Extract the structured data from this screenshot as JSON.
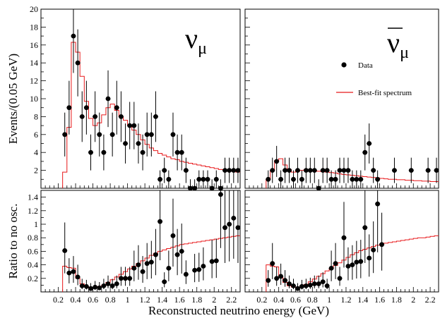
{
  "figure": {
    "xlabel": "Reconstructed neutrino energy (GeV)",
    "legend": {
      "data_label": "Data",
      "fit_label": "Best-fit spectrum"
    },
    "colors": {
      "fit": "#e8191b",
      "data": "#000000",
      "axes": "#000000"
    }
  },
  "chart_data": [
    {
      "panel": "top-left",
      "type": "scatter",
      "title": "νμ",
      "particle_symbol": "ν",
      "particle_subscript": "μ",
      "antineutrino": false,
      "xlabel": "",
      "ylabel": "Events/(0.05 GeV)",
      "xlim": [
        0,
        2.3
      ],
      "ylim": [
        0,
        20
      ],
      "yticks": [
        2,
        4,
        6,
        8,
        10,
        12,
        14,
        16,
        18,
        20
      ],
      "ytick_labels": [
        "2",
        "4",
        "6",
        "8",
        "10",
        "12",
        "14",
        "16",
        "18",
        "20"
      ],
      "data": {
        "x": [
          0.275,
          0.325,
          0.375,
          0.425,
          0.475,
          0.525,
          0.575,
          0.625,
          0.675,
          0.725,
          0.775,
          0.825,
          0.875,
          0.925,
          0.975,
          1.025,
          1.075,
          1.125,
          1.175,
          1.225,
          1.275,
          1.325,
          1.375,
          1.425,
          1.475,
          1.525,
          1.575,
          1.625,
          1.675,
          1.725,
          1.775,
          1.825,
          1.875,
          1.925,
          1.975,
          2.025,
          2.075,
          2.125,
          2.175,
          2.225,
          2.275
        ],
        "y": [
          6,
          9,
          17,
          14,
          8,
          9,
          4,
          8,
          6,
          4,
          10,
          6,
          9,
          8,
          5,
          7,
          7,
          5,
          4,
          6,
          6,
          8,
          1,
          2,
          1,
          6,
          4,
          4,
          2,
          0,
          0,
          1,
          1,
          1,
          0,
          1,
          0,
          2,
          2,
          2,
          2
        ]
      },
      "fit": {
        "edges": [
          0.25,
          0.3,
          0.35,
          0.4,
          0.45,
          0.5,
          0.55,
          0.6,
          0.65,
          0.7,
          0.75,
          0.8,
          0.85,
          0.9,
          0.95,
          1.0,
          1.05,
          1.1,
          1.15,
          1.2,
          1.25,
          1.3,
          1.35,
          1.4,
          1.45,
          1.5,
          1.55,
          1.6,
          1.65,
          1.7,
          1.75,
          1.8,
          1.85,
          1.9,
          1.95,
          2.0,
          2.05,
          2.1,
          2.15,
          2.2,
          2.25,
          2.3
        ],
        "values": [
          1.8,
          6.8,
          16.3,
          15.2,
          12.5,
          9.7,
          7.8,
          7.0,
          7.3,
          8.2,
          9.0,
          9.4,
          8.7,
          8.0,
          7.6,
          7.0,
          6.5,
          6.0,
          5.4,
          4.9,
          4.5,
          4.2,
          3.9,
          3.7,
          3.5,
          3.3,
          3.2,
          3.0,
          2.9,
          2.8,
          2.7,
          2.6,
          2.5,
          2.4,
          2.3,
          2.2,
          2.1,
          2.0,
          1.9,
          1.9,
          1.8
        ]
      }
    },
    {
      "panel": "top-right",
      "type": "scatter",
      "title": "ν̄μ",
      "particle_symbol": "ν",
      "particle_subscript": "μ",
      "antineutrino": true,
      "xlabel": "",
      "ylabel": "",
      "xlim": [
        0,
        2.3
      ],
      "ylim": [
        0,
        20
      ],
      "data": {
        "x": [
          0.275,
          0.325,
          0.375,
          0.425,
          0.475,
          0.525,
          0.575,
          0.625,
          0.675,
          0.725,
          0.775,
          0.825,
          0.875,
          0.925,
          0.975,
          1.025,
          1.075,
          1.125,
          1.175,
          1.225,
          1.275,
          1.325,
          1.375,
          1.425,
          1.475,
          1.525,
          1.575,
          1.775,
          1.975,
          2.175,
          2.275
        ],
        "y": [
          1,
          2,
          3,
          1,
          2,
          2,
          1,
          2,
          1,
          2,
          2,
          2,
          0,
          2,
          2,
          1,
          1,
          2,
          2,
          2,
          1,
          1,
          1,
          4,
          5,
          2,
          1,
          2,
          2,
          2,
          2
        ]
      },
      "fit": {
        "edges": [
          0.25,
          0.3,
          0.35,
          0.4,
          0.45,
          0.5,
          0.55,
          0.6,
          0.65,
          0.7,
          0.75,
          0.8,
          0.85,
          0.9,
          0.95,
          1.0,
          1.05,
          1.1,
          1.15,
          1.2,
          1.25,
          1.3,
          1.35,
          1.4,
          1.45,
          1.5,
          1.55,
          1.6,
          1.65,
          1.7,
          1.75,
          1.8,
          1.85,
          1.9,
          1.95,
          2.0,
          2.05,
          2.1,
          2.15,
          2.2,
          2.25,
          2.3
        ],
        "values": [
          1.0,
          2.0,
          3.1,
          3.3,
          2.6,
          2.1,
          1.8,
          1.9,
          2.0,
          2.1,
          2.1,
          2.0,
          1.9,
          1.85,
          1.8,
          1.75,
          1.7,
          1.6,
          1.55,
          1.5,
          1.45,
          1.4,
          1.35,
          1.3,
          1.25,
          1.2,
          1.15,
          1.1,
          1.05,
          1.0,
          1.0,
          0.95,
          0.95,
          0.9,
          0.9,
          0.85,
          0.85,
          0.8,
          0.8,
          0.75,
          0.75
        ]
      }
    },
    {
      "panel": "bottom-left",
      "type": "scatter",
      "xlabel": "Reconstructed neutrino energy (GeV)",
      "ylabel": "Ratio to no osc.",
      "xlim": [
        0,
        2.3
      ],
      "ylim": [
        0,
        1.5
      ],
      "yticks": [
        0.2,
        0.4,
        0.6,
        0.8,
        1.0,
        1.2,
        1.4
      ],
      "ytick_labels": [
        "0.2",
        "0.4",
        "0.6",
        "0.8",
        "1",
        "1.2",
        "1.4"
      ],
      "xticks": [
        0.2,
        0.4,
        0.6,
        0.8,
        1.0,
        1.2,
        1.4,
        1.6,
        1.8,
        2.0,
        2.2
      ],
      "xtick_labels": [
        "0.2",
        "0.4",
        "0.6",
        "0.8",
        "1",
        "1.2",
        "1.4",
        "1.6",
        "1.8",
        "2",
        "2.2"
      ],
      "data": {
        "x": [
          0.275,
          0.325,
          0.375,
          0.425,
          0.475,
          0.525,
          0.575,
          0.625,
          0.675,
          0.725,
          0.775,
          0.825,
          0.875,
          0.925,
          0.975,
          1.025,
          1.075,
          1.125,
          1.175,
          1.225,
          1.275,
          1.325,
          1.375,
          1.425,
          1.475,
          1.525,
          1.575,
          1.625,
          1.675,
          1.775,
          1.825,
          1.875,
          1.975,
          2.025,
          2.075,
          2.125,
          2.175,
          2.225,
          2.275
        ],
        "y": [
          0.61,
          0.28,
          0.3,
          0.22,
          0.09,
          0.08,
          0.05,
          0.07,
          0.06,
          0.09,
          0.12,
          0.09,
          0.12,
          0.2,
          0.2,
          0.2,
          0.35,
          0.4,
          0.3,
          0.42,
          0.44,
          0.55,
          1.04,
          0.15,
          0.35,
          0.83,
          0.55,
          0.6,
          0.26,
          0.32,
          0.33,
          0.38,
          0.45,
          0.46,
          1.44,
          0.95,
          1.0,
          1.09,
          0.95
        ]
      },
      "fit": {
        "edges": [
          0.25,
          0.3,
          0.35,
          0.4,
          0.45,
          0.5,
          0.55,
          0.6,
          0.65,
          0.7,
          0.75,
          0.8,
          0.85,
          0.9,
          0.95,
          1.0,
          1.05,
          1.1,
          1.15,
          1.2,
          1.25,
          1.3,
          1.35,
          1.4,
          1.45,
          1.5,
          1.55,
          1.6,
          1.65,
          1.7,
          1.75,
          1.8,
          1.85,
          1.9,
          1.95,
          2.0,
          2.05,
          2.1,
          2.15,
          2.2,
          2.25,
          2.3
        ],
        "values": [
          0.38,
          0.36,
          0.35,
          0.2,
          0.12,
          0.08,
          0.06,
          0.06,
          0.08,
          0.1,
          0.14,
          0.18,
          0.22,
          0.26,
          0.3,
          0.34,
          0.38,
          0.42,
          0.46,
          0.5,
          0.54,
          0.57,
          0.6,
          0.62,
          0.64,
          0.66,
          0.68,
          0.7,
          0.71,
          0.72,
          0.73,
          0.74,
          0.75,
          0.76,
          0.77,
          0.78,
          0.79,
          0.8,
          0.81,
          0.82,
          0.83
        ]
      }
    },
    {
      "panel": "bottom-right",
      "type": "scatter",
      "xlabel": "",
      "ylabel": "",
      "xlim": [
        0,
        2.3
      ],
      "ylim": [
        0,
        1.5
      ],
      "xticks": [
        0.2,
        0.4,
        0.6,
        0.8,
        1.0,
        1.2,
        1.4,
        1.6,
        1.8,
        2.0,
        2.2
      ],
      "xtick_labels": [
        "0.2",
        "0.4",
        "0.6",
        "0.8",
        "1",
        "1.2",
        "1.4",
        "1.6",
        "1.8",
        "2",
        "2.2"
      ],
      "data": {
        "x": [
          0.275,
          0.325,
          0.375,
          0.425,
          0.475,
          0.525,
          0.575,
          0.625,
          0.675,
          0.725,
          0.775,
          0.825,
          0.875,
          0.925,
          0.975,
          1.025,
          1.075,
          1.125,
          1.175,
          1.225,
          1.275,
          1.325,
          1.375,
          1.425,
          1.475,
          1.525,
          1.575,
          1.625
        ],
        "y": [
          0.17,
          0.42,
          0.2,
          0.23,
          0.17,
          0.12,
          0.09,
          0.05,
          0.08,
          0.09,
          0.1,
          0.12,
          0.12,
          0.15,
          0.09,
          0.35,
          0.42,
          0.2,
          0.8,
          0.38,
          0.4,
          0.44,
          0.45,
          0.95,
          0.5,
          0.62,
          1.3,
          0.7
        ]
      },
      "fit": {
        "edges": [
          0.25,
          0.3,
          0.35,
          0.4,
          0.45,
          0.5,
          0.55,
          0.6,
          0.65,
          0.7,
          0.75,
          0.8,
          0.85,
          0.9,
          0.95,
          1.0,
          1.05,
          1.1,
          1.15,
          1.2,
          1.25,
          1.3,
          1.35,
          1.4,
          1.45,
          1.5,
          1.55,
          1.6,
          1.65,
          1.7,
          1.75,
          1.8,
          1.85,
          1.9,
          1.95,
          2.0,
          2.05,
          2.1,
          2.15,
          2.2,
          2.25,
          2.3
        ],
        "values": [
          0.4,
          0.38,
          0.37,
          0.22,
          0.14,
          0.09,
          0.07,
          0.07,
          0.09,
          0.11,
          0.15,
          0.19,
          0.23,
          0.27,
          0.31,
          0.35,
          0.39,
          0.43,
          0.47,
          0.51,
          0.55,
          0.58,
          0.61,
          0.63,
          0.65,
          0.67,
          0.69,
          0.71,
          0.72,
          0.73,
          0.74,
          0.75,
          0.76,
          0.77,
          0.78,
          0.79,
          0.8,
          0.8,
          0.81,
          0.82,
          0.83
        ]
      }
    }
  ]
}
